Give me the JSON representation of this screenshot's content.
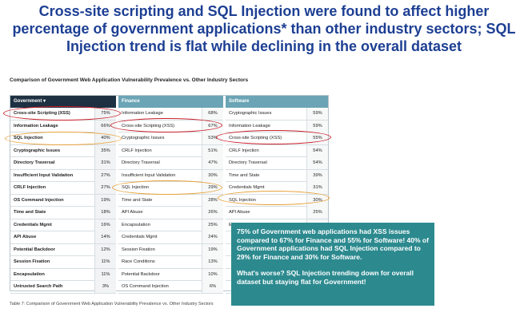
{
  "slide": {
    "headline": "Cross-site scripting and SQL Injection were found to affect higher percentage of government applications* than other industry sectors; SQL Injection trend is flat while declining in the overall dataset"
  },
  "figure": {
    "title": "Comparison of Government Web Application Vulnerability Prevalence vs. Other Industry Sectors",
    "caption": "Table 7: Comparison of Government Web Application Vulnerability Prevalence vs. Other Industry Sectors"
  },
  "table": {
    "columns": [
      {
        "header": "Government ▾",
        "rows": [
          {
            "name": "Cross-site Scripting (XSS)",
            "pct": "75%"
          },
          {
            "name": "Information Leakage",
            "pct": "66%"
          },
          {
            "name": "SQL Injection",
            "pct": "40%"
          },
          {
            "name": "Cryptographic Issues",
            "pct": "35%"
          },
          {
            "name": "Directory Traversal",
            "pct": "31%"
          },
          {
            "name": "Insufficient Input Validation",
            "pct": "27%"
          },
          {
            "name": "CRLF Injection",
            "pct": "27%"
          },
          {
            "name": "OS Command Injection",
            "pct": "19%"
          },
          {
            "name": "Time and State",
            "pct": "18%"
          },
          {
            "name": "Credentials Mgmt",
            "pct": "16%"
          },
          {
            "name": "API Abuse",
            "pct": "14%"
          },
          {
            "name": "Potential Backdoor",
            "pct": "12%"
          },
          {
            "name": "Session Fixation",
            "pct": "11%"
          },
          {
            "name": "Encapsulation",
            "pct": "11%"
          },
          {
            "name": "Untrusted Search Path",
            "pct": "3%"
          }
        ]
      },
      {
        "header": "Finance",
        "rows": [
          {
            "name": "Information Leakage",
            "pct": "68%"
          },
          {
            "name": "Cross-site Scripting (XSS)",
            "pct": "67%"
          },
          {
            "name": "Cryptographic Issues",
            "pct": "53%"
          },
          {
            "name": "CRLF Injection",
            "pct": "51%"
          },
          {
            "name": "Directory Traversal",
            "pct": "47%"
          },
          {
            "name": "Insufficient Input Validation",
            "pct": "30%"
          },
          {
            "name": "SQL Injection",
            "pct": "29%"
          },
          {
            "name": "Time and State",
            "pct": "28%"
          },
          {
            "name": "API Abuse",
            "pct": "26%"
          },
          {
            "name": "Encapsulation",
            "pct": "25%"
          },
          {
            "name": "Credentials Mgmt",
            "pct": "24%"
          },
          {
            "name": "Session Fixation",
            "pct": "19%"
          },
          {
            "name": "Race Conditions",
            "pct": "13%"
          },
          {
            "name": "Potential Backdoor",
            "pct": "10%"
          },
          {
            "name": "OS Command Injection",
            "pct": "6%"
          }
        ]
      },
      {
        "header": "Software",
        "rows": [
          {
            "name": "Cryptographic Issues",
            "pct": "59%"
          },
          {
            "name": "Information Leakage",
            "pct": "59%"
          },
          {
            "name": "Cross-site Scripting (XSS)",
            "pct": "55%"
          },
          {
            "name": "CRLF Injection",
            "pct": "54%"
          },
          {
            "name": "Directory Traversal",
            "pct": "54%"
          },
          {
            "name": "Time and State",
            "pct": "39%"
          },
          {
            "name": "Credentials Mgmt",
            "pct": "31%"
          },
          {
            "name": "SQL Injection",
            "pct": "30%"
          },
          {
            "name": "API Abuse",
            "pct": "25%"
          },
          {
            "name": "Encapsulation",
            "pct": "23%"
          },
          {
            "name": "",
            "pct": ""
          },
          {
            "name": "",
            "pct": ""
          },
          {
            "name": "",
            "pct": ""
          },
          {
            "name": "",
            "pct": ""
          },
          {
            "name": "",
            "pct": ""
          }
        ]
      }
    ]
  },
  "callout": {
    "paragraph1": "75% of Government web applications had XSS issues compared to 67% for Finance and 55% for Software! 40% of Government applications had SQL Injection compared to 29% for Finance and  30% for Software.",
    "paragraph2": "What's worse? SQL Injection trending down for overall dataset but staying flat for Government!"
  },
  "colors": {
    "headline": "#1d3f93",
    "gov_header": "#1d3142",
    "sector_header": "#6aa4b5",
    "callout_bg": "#2c8a8f",
    "xss_highlight": "#c8202a",
    "sqli_highlight": "#e7a23a"
  }
}
